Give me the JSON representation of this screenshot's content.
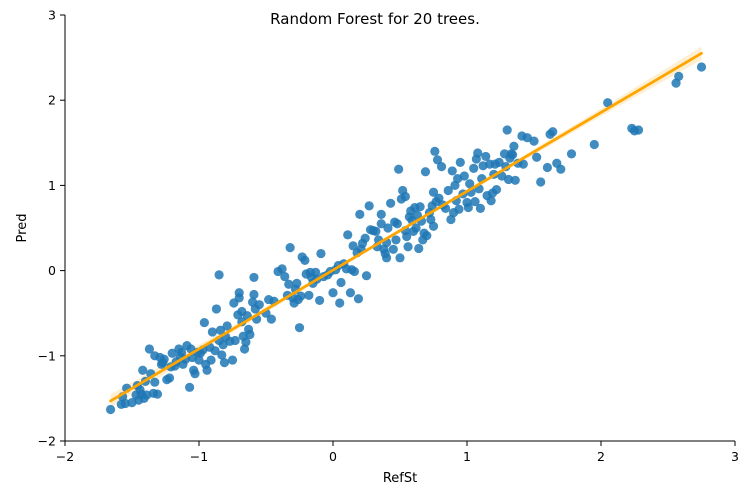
{
  "chart_data": {
    "type": "scatter",
    "title": "Random Forest for 20 trees.",
    "xlabel": "RefSt",
    "ylabel": "Pred",
    "xlim": [
      -2,
      3
    ],
    "ylim": [
      -2,
      3
    ],
    "xticks": [
      -2,
      -1,
      0,
      1,
      2,
      3
    ],
    "yticks": [
      -2,
      -1,
      0,
      1,
      2,
      3
    ],
    "grid": false,
    "colors": {
      "points": "#1f77b4",
      "fit_line": "#ffa500",
      "ci_band": "#ffd27f"
    },
    "regression_line": {
      "x": [
        -1.66,
        2.75
      ],
      "y": [
        -1.53,
        2.55
      ]
    },
    "points": [
      [
        -1.66,
        -1.63
      ],
      [
        -1.58,
        -1.57
      ],
      [
        -1.57,
        -1.48
      ],
      [
        -1.55,
        -1.56
      ],
      [
        -1.54,
        -1.38
      ],
      [
        -1.5,
        -1.55
      ],
      [
        -1.47,
        -1.46
      ],
      [
        -1.46,
        -1.35
      ],
      [
        -1.45,
        -1.52
      ],
      [
        -1.44,
        -1.4
      ],
      [
        -1.43,
        -1.45
      ],
      [
        -1.42,
        -1.17
      ],
      [
        -1.41,
        -1.5
      ],
      [
        -1.4,
        -1.3
      ],
      [
        -1.39,
        -1.46
      ],
      [
        -1.37,
        -0.92
      ],
      [
        -1.36,
        -1.21
      ],
      [
        -1.34,
        -1.44
      ],
      [
        -1.33,
        -1.31
      ],
      [
        -1.33,
        -1.0
      ],
      [
        -1.31,
        -1.45
      ],
      [
        -1.29,
        -1.02
      ],
      [
        -1.28,
        -1.1
      ],
      [
        -1.27,
        -1.08
      ],
      [
        -1.26,
        -1.04
      ],
      [
        -1.24,
        -1.28
      ],
      [
        -1.22,
        -1.26
      ],
      [
        -1.21,
        -1.13
      ],
      [
        -1.2,
        -0.97
      ],
      [
        -1.18,
        -1.12
      ],
      [
        -1.17,
        -1.07
      ],
      [
        -1.15,
        -0.92
      ],
      [
        -1.14,
        -1.01
      ],
      [
        -1.13,
        -0.96
      ],
      [
        -1.12,
        -1.1
      ],
      [
        -1.1,
        -1.04
      ],
      [
        -1.09,
        -0.88
      ],
      [
        -1.07,
        -1.37
      ],
      [
        -1.06,
        -0.92
      ],
      [
        -1.05,
        -1.02
      ],
      [
        -1.04,
        -1.17
      ],
      [
        -1.03,
        -1.21
      ],
      [
        -1.01,
        -0.96
      ],
      [
        -1.0,
        -1.05
      ],
      [
        -0.99,
        -0.97
      ],
      [
        -0.97,
        -0.93
      ],
      [
        -0.96,
        -0.61
      ],
      [
        -0.95,
        -1.1
      ],
      [
        -0.94,
        -1.17
      ],
      [
        -0.92,
        -0.9
      ],
      [
        -0.91,
        -1.05
      ],
      [
        -0.9,
        -0.72
      ],
      [
        -0.88,
        -0.94
      ],
      [
        -0.87,
        -0.45
      ],
      [
        -0.85,
        -0.05
      ],
      [
        -0.85,
        -0.82
      ],
      [
        -0.84,
        -0.7
      ],
      [
        -0.83,
        -0.99
      ],
      [
        -0.82,
        -0.87
      ],
      [
        -0.81,
        -1.08
      ],
      [
        -0.8,
        -0.78
      ],
      [
        -0.79,
        -0.65
      ],
      [
        -0.77,
        -0.83
      ],
      [
        -0.75,
        -1.05
      ],
      [
        -0.74,
        -0.38
      ],
      [
        -0.73,
        -0.82
      ],
      [
        -0.71,
        -0.52
      ],
      [
        -0.7,
        -0.26
      ],
      [
        -0.7,
        -0.32
      ],
      [
        -0.68,
        -0.6
      ],
      [
        -0.68,
        -0.48
      ],
      [
        -0.67,
        -0.77
      ],
      [
        -0.66,
        -0.92
      ],
      [
        -0.65,
        -0.84
      ],
      [
        -0.64,
        -0.53
      ],
      [
        -0.63,
        -0.69
      ],
      [
        -0.62,
        -0.75
      ],
      [
        -0.6,
        -0.37
      ],
      [
        -0.59,
        -0.28
      ],
      [
        -0.59,
        -0.08
      ],
      [
        -0.58,
        -0.45
      ],
      [
        -0.57,
        -0.57
      ],
      [
        -0.55,
        -0.4
      ],
      [
        -0.5,
        -0.5
      ],
      [
        -0.48,
        -0.34
      ],
      [
        -0.46,
        -0.57
      ],
      [
        -0.44,
        -0.36
      ],
      [
        -0.41,
        -0.01
      ],
      [
        -0.38,
        0.02
      ],
      [
        -0.36,
        -0.07
      ],
      [
        -0.34,
        -0.29
      ],
      [
        -0.33,
        -0.16
      ],
      [
        -0.32,
        0.27
      ],
      [
        -0.3,
        -0.32
      ],
      [
        -0.29,
        -0.38
      ],
      [
        -0.28,
        -0.22
      ],
      [
        -0.27,
        -0.15
      ],
      [
        -0.26,
        -0.34
      ],
      [
        -0.25,
        -0.67
      ],
      [
        -0.24,
        -0.3
      ],
      [
        -0.23,
        0.16
      ],
      [
        -0.21,
        0.12
      ],
      [
        -0.2,
        -0.04
      ],
      [
        -0.18,
        -0.29
      ],
      [
        -0.17,
        -0.02
      ],
      [
        -0.16,
        -0.08
      ],
      [
        -0.15,
        -0.15
      ],
      [
        -0.13,
        -0.02
      ],
      [
        -0.12,
        -0.1
      ],
      [
        -0.1,
        -0.35
      ],
      [
        -0.09,
        0.2
      ],
      [
        -0.07,
        -0.07
      ],
      [
        -0.04,
        -0.05
      ],
      [
        -0.02,
        -0.01
      ],
      [
        0.0,
        -0.26
      ],
      [
        0.02,
        0.01
      ],
      [
        0.04,
        0.06
      ],
      [
        0.05,
        -0.38
      ],
      [
        0.06,
        -0.14
      ],
      [
        0.08,
        0.08
      ],
      [
        0.1,
        0.02
      ],
      [
        0.11,
        0.42
      ],
      [
        0.13,
        -0.26
      ],
      [
        0.14,
        0.01
      ],
      [
        0.15,
        0.29
      ],
      [
        0.16,
        -0.01
      ],
      [
        0.18,
        0.21
      ],
      [
        0.19,
        -0.33
      ],
      [
        0.2,
        0.66
      ],
      [
        0.21,
        0.25
      ],
      [
        0.22,
        0.32
      ],
      [
        0.24,
        0.38
      ],
      [
        0.25,
        -0.06
      ],
      [
        0.27,
        0.76
      ],
      [
        0.28,
        0.48
      ],
      [
        0.3,
        0.47
      ],
      [
        0.32,
        0.46
      ],
      [
        0.33,
        0.28
      ],
      [
        0.34,
        0.36
      ],
      [
        0.36,
        0.55
      ],
      [
        0.36,
        0.66
      ],
      [
        0.38,
        0.25
      ],
      [
        0.39,
        0.2
      ],
      [
        0.4,
        0.15
      ],
      [
        0.4,
        0.33
      ],
      [
        0.41,
        0.5
      ],
      [
        0.43,
        0.79
      ],
      [
        0.45,
        0.25
      ],
      [
        0.46,
        0.57
      ],
      [
        0.47,
        0.36
      ],
      [
        0.48,
        0.55
      ],
      [
        0.49,
        1.19
      ],
      [
        0.5,
        0.15
      ],
      [
        0.51,
        0.84
      ],
      [
        0.52,
        0.94
      ],
      [
        0.54,
        0.87
      ],
      [
        0.54,
        0.47
      ],
      [
        0.55,
        0.4
      ],
      [
        0.56,
        0.28
      ],
      [
        0.57,
        0.63
      ],
      [
        0.58,
        0.7
      ],
      [
        0.59,
        0.59
      ],
      [
        0.6,
        0.46
      ],
      [
        0.61,
        0.74
      ],
      [
        0.62,
        0.5
      ],
      [
        0.63,
        0.65
      ],
      [
        0.64,
        0.26
      ],
      [
        0.65,
        0.75
      ],
      [
        0.66,
        0.58
      ],
      [
        0.67,
        0.36
      ],
      [
        0.68,
        0.44
      ],
      [
        0.69,
        1.16
      ],
      [
        0.7,
        0.41
      ],
      [
        0.72,
        0.68
      ],
      [
        0.73,
        0.6
      ],
      [
        0.74,
        0.76
      ],
      [
        0.75,
        0.52
      ],
      [
        0.75,
        0.92
      ],
      [
        0.76,
        1.4
      ],
      [
        0.77,
        0.81
      ],
      [
        0.78,
        1.3
      ],
      [
        0.79,
        0.85
      ],
      [
        0.81,
        1.22
      ],
      [
        0.82,
        0.77
      ],
      [
        0.84,
        0.73
      ],
      [
        0.86,
        0.94
      ],
      [
        0.88,
        0.6
      ],
      [
        0.89,
        1.17
      ],
      [
        0.9,
        0.68
      ],
      [
        0.91,
        1.0
      ],
      [
        0.92,
        0.82
      ],
      [
        0.93,
        1.08
      ],
      [
        0.94,
        0.72
      ],
      [
        0.95,
        1.27
      ],
      [
        0.97,
        0.9
      ],
      [
        0.98,
        1.11
      ],
      [
        1.0,
        0.8
      ],
      [
        1.01,
        0.74
      ],
      [
        1.02,
        1.02
      ],
      [
        1.03,
        0.92
      ],
      [
        1.05,
        1.2
      ],
      [
        1.06,
        0.81
      ],
      [
        1.07,
        1.31
      ],
      [
        1.08,
        1.38
      ],
      [
        1.09,
        0.96
      ],
      [
        1.1,
        0.73
      ],
      [
        1.11,
        1.08
      ],
      [
        1.12,
        1.23
      ],
      [
        1.14,
        1.34
      ],
      [
        1.15,
        0.88
      ],
      [
        1.17,
        1.25
      ],
      [
        1.18,
        0.82
      ],
      [
        1.19,
        0.91
      ],
      [
        1.2,
        1.13
      ],
      [
        1.21,
        1.25
      ],
      [
        1.22,
        0.95
      ],
      [
        1.24,
        1.27
      ],
      [
        1.26,
        1.11
      ],
      [
        1.28,
        1.37
      ],
      [
        1.29,
        1.22
      ],
      [
        1.3,
        1.65
      ],
      [
        1.31,
        1.07
      ],
      [
        1.32,
        1.32
      ],
      [
        1.33,
        1.37
      ],
      [
        1.34,
        1.36
      ],
      [
        1.35,
        1.46
      ],
      [
        1.36,
        1.06
      ],
      [
        1.38,
        1.26
      ],
      [
        1.41,
        1.58
      ],
      [
        1.42,
        1.25
      ],
      [
        1.45,
        1.56
      ],
      [
        1.5,
        1.52
      ],
      [
        1.52,
        1.33
      ],
      [
        1.55,
        1.04
      ],
      [
        1.6,
        1.21
      ],
      [
        1.62,
        1.6
      ],
      [
        1.64,
        1.63
      ],
      [
        1.67,
        1.26
      ],
      [
        1.7,
        1.19
      ],
      [
        1.78,
        1.37
      ],
      [
        1.95,
        1.48
      ],
      [
        2.05,
        1.97
      ],
      [
        2.23,
        1.67
      ],
      [
        2.25,
        1.64
      ],
      [
        2.28,
        1.65
      ],
      [
        2.56,
        2.2
      ],
      [
        2.58,
        2.28
      ],
      [
        2.75,
        2.39
      ]
    ]
  }
}
